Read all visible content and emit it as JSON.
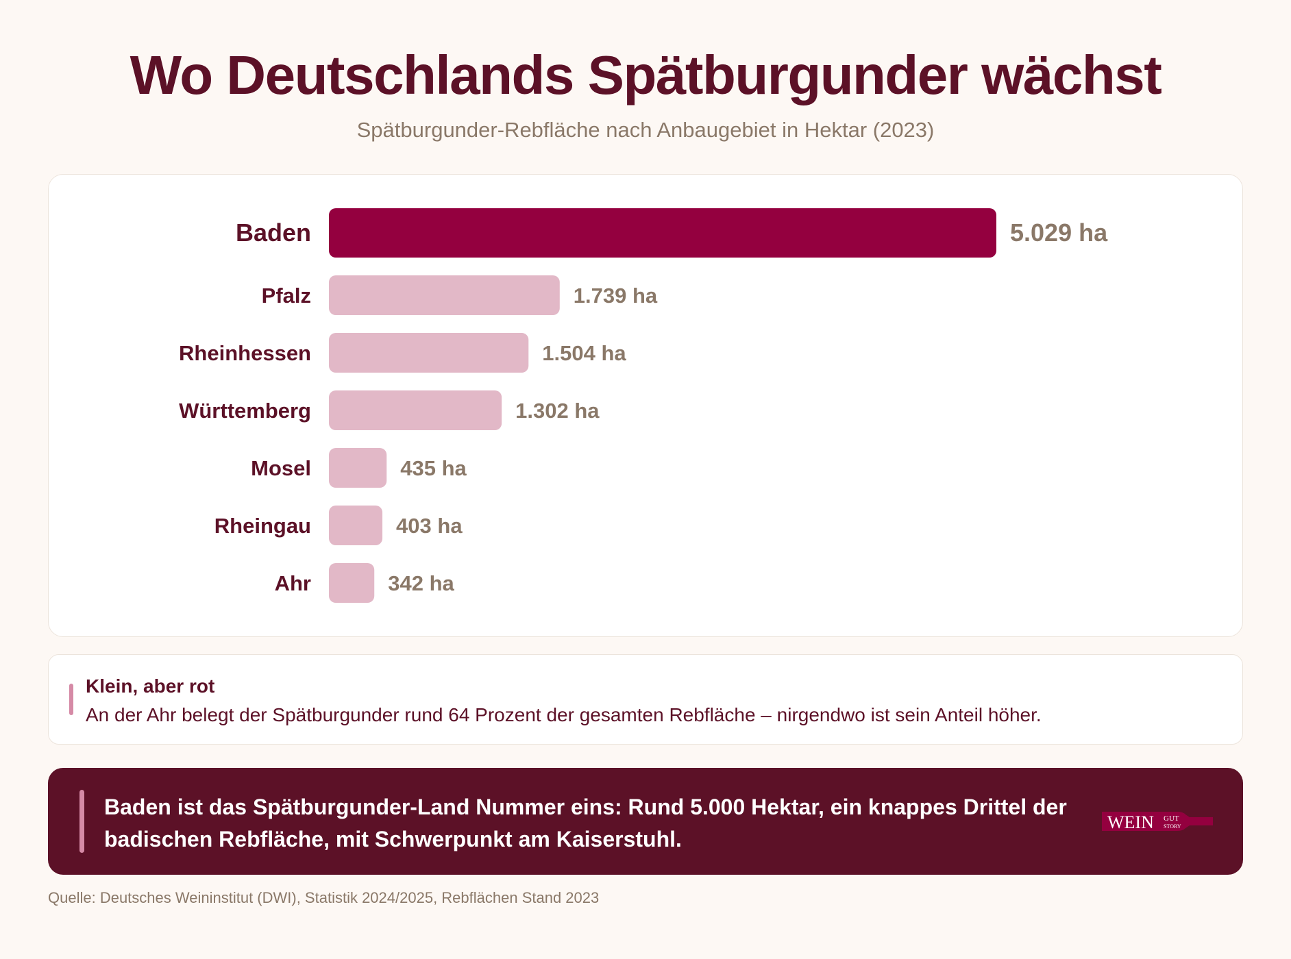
{
  "header": {
    "title": "Wo Deutschlands Spätburgunder wächst",
    "subtitle": "Spätburgunder-Rebfläche nach Anbaugebiet in Hektar (2023)"
  },
  "colors": {
    "highlight_bar": "#94003f",
    "bar": "#e2b8c7",
    "highlight_value": "#94003f",
    "value": "#8a7868",
    "label": "#5c1127"
  },
  "chart_data": {
    "type": "bar",
    "orientation": "horizontal",
    "categories": [
      "Baden",
      "Pfalz",
      "Rheinhessen",
      "Württemberg",
      "Mosel",
      "Rheingau",
      "Ahr"
    ],
    "values": [
      5029,
      1739,
      1504,
      1302,
      435,
      403,
      342
    ],
    "value_labels": [
      "5.029 ha",
      "1.739 ha",
      "1.504 ha",
      "1.302 ha",
      "435 ha",
      "403 ha",
      "342 ha"
    ],
    "unit": "ha",
    "highlight": "Baden",
    "grid": false,
    "legend": "none"
  },
  "note": {
    "title": "Klein, aber rot",
    "text": "An der Ahr belegt der Spätburgunder rund 64 Prozent der gesamten Rebfläche – nirgendwo ist sein Anteil höher."
  },
  "banner": {
    "text": "Baden ist das Spätburgunder-Land Nummer eins: Rund 5.000 Hektar, ein knappes Drittel der badischen Rebfläche, mit Schwerpunkt am Kaiserstuhl.",
    "logo_main": "WEIN",
    "logo_top": "GUT",
    "logo_bottom": "STORY"
  },
  "footer": {
    "source": "Quelle: Deutsches Weininstitut (DWI), Statistik 2024/2025, Rebflächen Stand 2023"
  }
}
